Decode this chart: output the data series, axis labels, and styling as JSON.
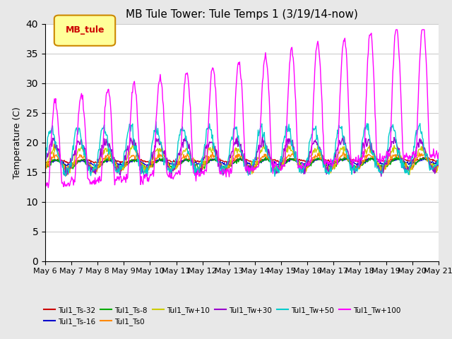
{
  "title": "MB Tule Tower: Tule Temps 1 (3/19/14-now)",
  "xlabel": "",
  "ylabel": "Temperature (C)",
  "ylim": [
    0,
    40
  ],
  "yticks": [
    0,
    5,
    10,
    15,
    20,
    25,
    30,
    35,
    40
  ],
  "background_color": "#e8e8e8",
  "plot_bg_color": "#ffffff",
  "grid_color": "#cccccc",
  "legend_label": "MB_tule",
  "legend_box_color": "#ffff99",
  "legend_box_edge": "#cc8800",
  "series": [
    {
      "label": "Tul1_Ts-32",
      "color": "#cc0000"
    },
    {
      "label": "Tul1_Ts-16",
      "color": "#0000cc"
    },
    {
      "label": "Tul1_Ts-8",
      "color": "#00aa00"
    },
    {
      "label": "Tul1_Ts0",
      "color": "#ff8800"
    },
    {
      "label": "Tul1_Tw+10",
      "color": "#cccc00"
    },
    {
      "label": "Tul1_Tw+30",
      "color": "#9900cc"
    },
    {
      "label": "Tul1_Tw+50",
      "color": "#00cccc"
    },
    {
      "label": "Tul1_Tw+100",
      "color": "#ff00ff"
    }
  ],
  "date_labels": [
    "May 6",
    "May 7",
    "May 8",
    "May 9",
    "May 10",
    "May 11",
    "May 12",
    "May 13",
    "May 14",
    "May 15",
    "May 16",
    "May 17",
    "May 18",
    "May 19",
    "May 20",
    "May 21"
  ],
  "n_points": 640
}
